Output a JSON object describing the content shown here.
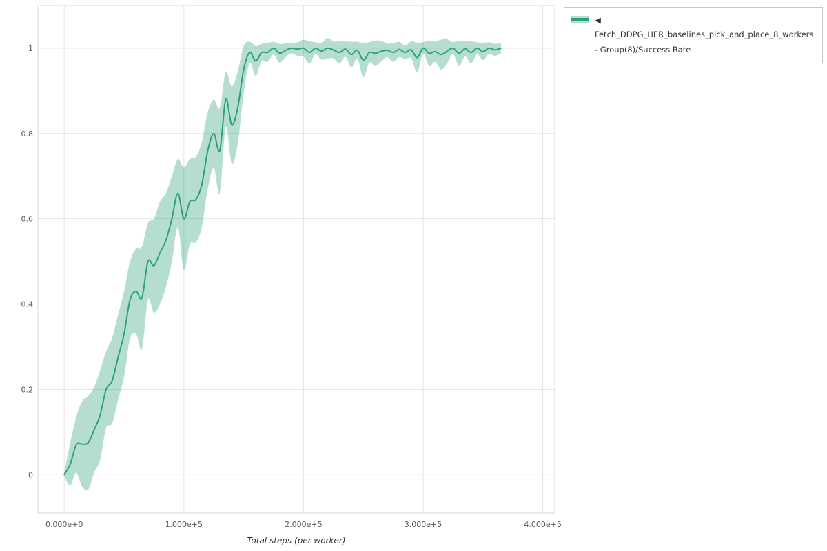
{
  "page": {
    "background": "#ffffff"
  },
  "legend": {
    "label": "◀ Fetch_DDPG_HER_baselines_pick_and_place_8_workers - Group(8)/Success Rate",
    "line_color": "#2aa17c",
    "band_color": "rgba(42,161,124,0.35)"
  },
  "style": {
    "grid_color": "#e4e4e4",
    "frame_color": "#d8d8d8",
    "tick_color": "#555555",
    "axis_title_color": "#333333"
  },
  "chart_data": {
    "type": "line",
    "title": "",
    "xlabel": "Total steps (per worker)",
    "ylabel": "",
    "grid": true,
    "legend_position": "top-right-outside",
    "xlim": [
      -22000,
      410000
    ],
    "ylim": [
      -0.09,
      1.1
    ],
    "x_ticks": {
      "values": [
        0,
        100000,
        200000,
        300000,
        400000
      ],
      "labels": [
        "0.000e+0",
        "1.000e+5",
        "2.000e+5",
        "3.000e+5",
        "4.000e+5"
      ]
    },
    "y_ticks": {
      "values": [
        0,
        0.2,
        0.4,
        0.6,
        0.8,
        1
      ],
      "labels": [
        "0",
        "0.2",
        "0.4",
        "0.6",
        "0.8",
        "1"
      ]
    },
    "series": [
      {
        "name": "Fetch_DDPG_HER_baselines_pick_and_place_8_workers - Group(8)/Success Rate",
        "color": "#2aa17c",
        "band_opacity": 0.35,
        "x": [
          0,
          5000,
          10000,
          15000,
          20000,
          25000,
          30000,
          35000,
          40000,
          45000,
          50000,
          55000,
          60000,
          65000,
          70000,
          75000,
          80000,
          85000,
          90000,
          95000,
          100000,
          105000,
          110000,
          115000,
          120000,
          125000,
          130000,
          135000,
          140000,
          145000,
          150000,
          155000,
          160000,
          165000,
          170000,
          175000,
          180000,
          185000,
          190000,
          195000,
          200000,
          205000,
          210000,
          215000,
          220000,
          225000,
          230000,
          235000,
          240000,
          245000,
          250000,
          255000,
          260000,
          265000,
          270000,
          275000,
          280000,
          285000,
          290000,
          295000,
          300000,
          305000,
          310000,
          315000,
          320000,
          325000,
          330000,
          335000,
          340000,
          345000,
          350000,
          355000,
          360000,
          365000
        ],
        "mean": [
          0,
          0.025,
          0.07,
          0.072,
          0.075,
          0.105,
          0.14,
          0.2,
          0.22,
          0.275,
          0.33,
          0.41,
          0.43,
          0.415,
          0.5,
          0.49,
          0.52,
          0.55,
          0.6,
          0.66,
          0.6,
          0.64,
          0.645,
          0.68,
          0.76,
          0.8,
          0.76,
          0.88,
          0.82,
          0.86,
          0.95,
          0.99,
          0.97,
          0.99,
          0.99,
          1.0,
          0.988,
          0.995,
          1.0,
          0.998,
          1.0,
          0.99,
          1.0,
          0.993,
          1.0,
          0.996,
          0.99,
          0.998,
          0.985,
          0.995,
          0.972,
          0.99,
          0.988,
          0.993,
          0.995,
          0.99,
          0.997,
          0.99,
          0.996,
          0.978,
          1.0,
          0.988,
          0.992,
          0.985,
          0.993,
          1.0,
          0.988,
          0.999,
          0.99,
          1.0,
          0.992,
          1.0,
          0.996,
          1.0
        ],
        "band_halfwidth": [
          0.004,
          0.05,
          0.065,
          0.1,
          0.11,
          0.1,
          0.105,
          0.09,
          0.1,
          0.1,
          0.1,
          0.09,
          0.1,
          0.12,
          0.09,
          0.11,
          0.12,
          0.11,
          0.1,
          0.08,
          0.12,
          0.1,
          0.1,
          0.1,
          0.09,
          0.08,
          0.1,
          0.065,
          0.09,
          0.085,
          0.055,
          0.025,
          0.035,
          0.02,
          0.022,
          0.015,
          0.022,
          0.016,
          0.012,
          0.016,
          0.02,
          0.026,
          0.014,
          0.02,
          0.024,
          0.02,
          0.026,
          0.018,
          0.03,
          0.02,
          0.04,
          0.024,
          0.03,
          0.024,
          0.016,
          0.022,
          0.018,
          0.016,
          0.02,
          0.035,
          0.014,
          0.03,
          0.024,
          0.035,
          0.028,
          0.014,
          0.03,
          0.018,
          0.026,
          0.014,
          0.02,
          0.014,
          0.014,
          0.012
        ]
      }
    ]
  }
}
